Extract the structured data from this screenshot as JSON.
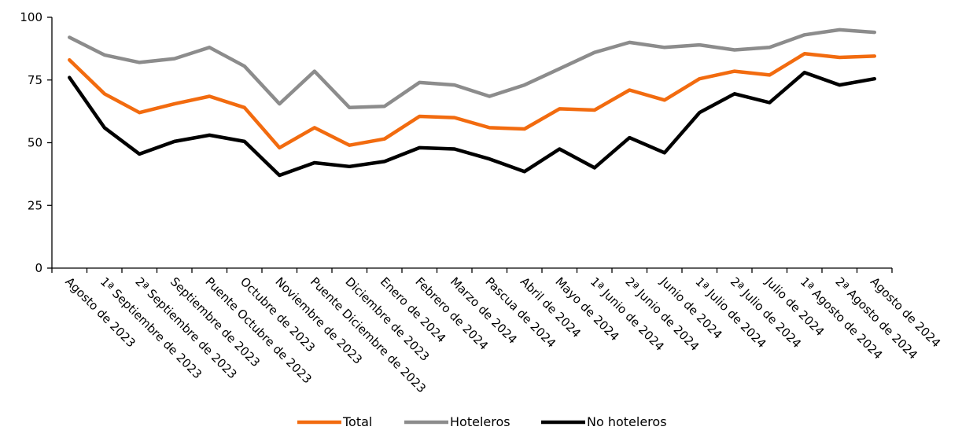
{
  "chart_data": {
    "type": "line",
    "title": "",
    "xlabel": "",
    "ylabel": "",
    "ylim": [
      0,
      100
    ],
    "yticks": [
      0,
      25,
      50,
      75,
      100
    ],
    "grid": false,
    "legend_position": "bottom",
    "categories": [
      "Agosto de 2023",
      "1ª Septiembre de 2023",
      "2ª Septiembre de 2023",
      "Septiembre de 2023",
      "Puente Octubre de 2023",
      "Octubre de 2023",
      "Noviembre de 2023",
      "Puente Diciembre de 2023",
      "Diciembre de 2023",
      "Enero de 2024",
      "Febrero de 2024",
      "Marzo de 2024",
      "Pascua de 2024",
      "Abril de 2024",
      "Mayo de 2024",
      "1ª Junio de 2024",
      "2ª Junio de 2024",
      "Junio de 2024",
      "1ª Julio de 2024",
      "2ª Julio de 2024",
      "Julio de 2024",
      "1ª Agosto de 2024",
      "2ª Agosto de 2024",
      "Agosto de 2024"
    ],
    "series": [
      {
        "name": "Total",
        "color": "#F26B0F",
        "values": [
          83,
          69.5,
          62,
          65.5,
          68.5,
          64,
          48,
          56,
          49,
          51.5,
          60.5,
          60,
          56,
          55.5,
          63.5,
          63,
          71,
          67,
          75.5,
          78.5,
          77,
          85.5,
          84,
          84.5
        ]
      },
      {
        "name": "Hoteleros",
        "color": "#8C8C8C",
        "values": [
          92,
          85,
          82,
          83.5,
          88,
          80.5,
          65.5,
          78.5,
          64,
          64.5,
          74,
          73,
          68.5,
          73,
          79.5,
          86,
          90,
          88,
          89,
          87,
          88,
          93,
          95,
          94
        ]
      },
      {
        "name": "No hoteleros",
        "color": "#000000",
        "values": [
          76,
          56,
          45.5,
          50.5,
          53,
          50.5,
          37,
          42,
          40.5,
          42.5,
          48,
          47.5,
          43.5,
          38.5,
          47.5,
          40,
          52,
          46,
          62,
          69.5,
          66,
          78,
          73,
          75.5
        ]
      }
    ]
  }
}
